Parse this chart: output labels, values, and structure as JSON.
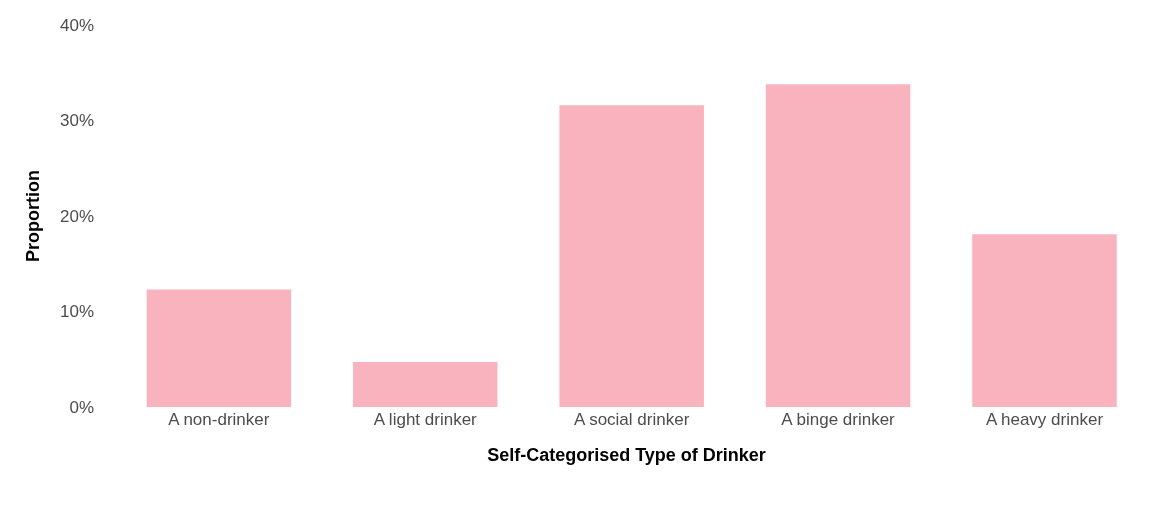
{
  "chart_data": {
    "type": "bar",
    "xlabel": "Self-Categorised Type of Drinker",
    "ylabel": "Proportion",
    "categories": [
      "A non-drinker",
      "A light drinker",
      "A social drinker",
      "A binge drinker",
      "A heavy drinker"
    ],
    "values": [
      12.3,
      4.7,
      31.6,
      33.8,
      18.1
    ],
    "color": "#f9b3bf",
    "ylim": [
      0,
      40
    ],
    "yticks": [
      {
        "value": 0,
        "label": "0%"
      },
      {
        "value": 10,
        "label": "10%"
      },
      {
        "value": 20,
        "label": "20%"
      },
      {
        "value": 30,
        "label": "30%"
      },
      {
        "value": 40,
        "label": "40%"
      }
    ],
    "tick_labels": "xy"
  }
}
